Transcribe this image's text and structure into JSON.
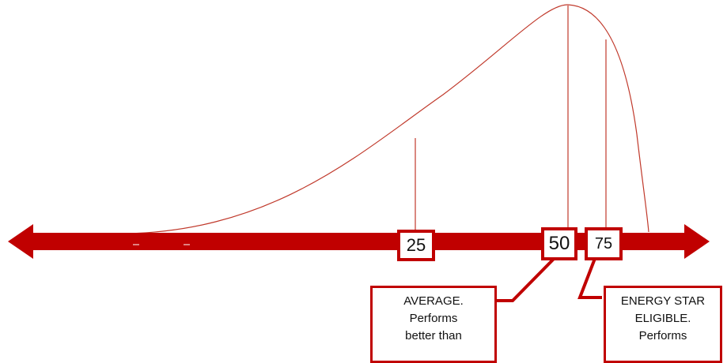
{
  "colors": {
    "accent": "#c00000",
    "curve": "#c0392b",
    "text": "#111111"
  },
  "diagram": {
    "markers": [
      {
        "label": "25"
      },
      {
        "label": "50"
      },
      {
        "label": "75"
      }
    ],
    "callouts": {
      "average": {
        "lines": [
          "AVERAGE.",
          "Performs",
          "better than"
        ]
      },
      "energy_star": {
        "lines": [
          "ENERGY STAR",
          "ELIGIBLE.",
          "Performs"
        ]
      }
    }
  }
}
